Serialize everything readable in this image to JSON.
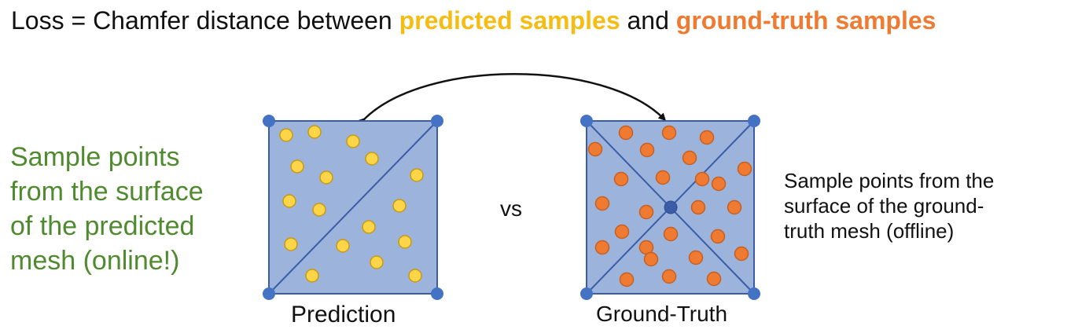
{
  "title": {
    "prefix": "Loss = Chamfer distance between ",
    "predicted": "predicted samples",
    "middle": " and ",
    "ground_truth": "ground-truth samples"
  },
  "left_note": {
    "lines": [
      "Sample points",
      "from the surface",
      "of the predicted",
      "mesh (online!)"
    ]
  },
  "right_note": {
    "lines": [
      "Sample points from the",
      "surface of the ground-",
      "truth mesh (offline)"
    ]
  },
  "vs_label": "vs",
  "prediction_label": "Prediction",
  "ground_truth_label": "Ground-Truth",
  "colors": {
    "predicted": "#f5bd13",
    "ground_truth": "#ee7b31",
    "mesh_fill": "#9cb3dc",
    "mesh_edge": "#3b5da8",
    "vertex": "#4472c4",
    "left_text": "#4f8a2f"
  }
}
